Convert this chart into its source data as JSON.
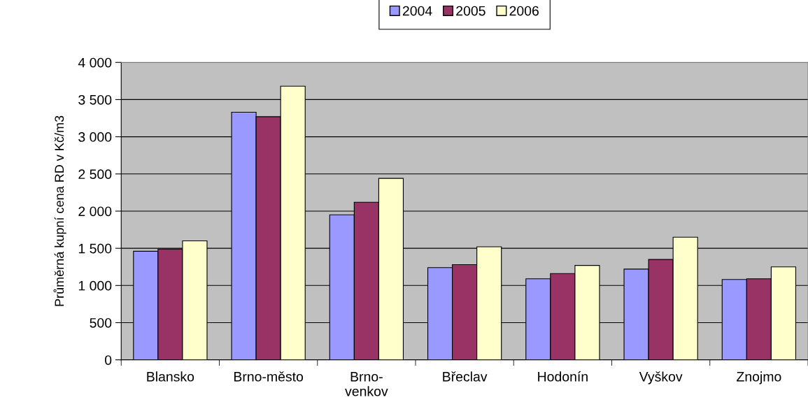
{
  "chart_data": {
    "type": "bar",
    "ylabel": "Průměrná kupní cena RD v Kč/m3",
    "categories": [
      "Blansko",
      "Brno-město",
      "Brno-\nvenkov",
      "Břeclav",
      "Hodonín",
      "Vyškov",
      "Znojmo"
    ],
    "series": [
      {
        "name": "2004",
        "color": "#9999ff",
        "values": [
          1460,
          3330,
          1950,
          1240,
          1090,
          1220,
          1080
        ]
      },
      {
        "name": "2005",
        "color": "#993366",
        "values": [
          1490,
          3270,
          2120,
          1280,
          1160,
          1350,
          1090
        ]
      },
      {
        "name": "2006",
        "color": "#ffffcc",
        "values": [
          1600,
          3680,
          2440,
          1520,
          1270,
          1650,
          1250
        ]
      }
    ],
    "ylim": [
      0,
      4000
    ],
    "yticks": [
      {
        "value": 0,
        "label": "0"
      },
      {
        "value": 500,
        "label": "500"
      },
      {
        "value": 1000,
        "label": "1 000"
      },
      {
        "value": 1500,
        "label": "1 500"
      },
      {
        "value": 2000,
        "label": "2 000"
      },
      {
        "value": 2500,
        "label": "2 500"
      },
      {
        "value": 3000,
        "label": "3 000"
      },
      {
        "value": 3500,
        "label": "3 500"
      },
      {
        "value": 4000,
        "label": "4 000"
      }
    ],
    "grid": "y",
    "legend": "top"
  }
}
